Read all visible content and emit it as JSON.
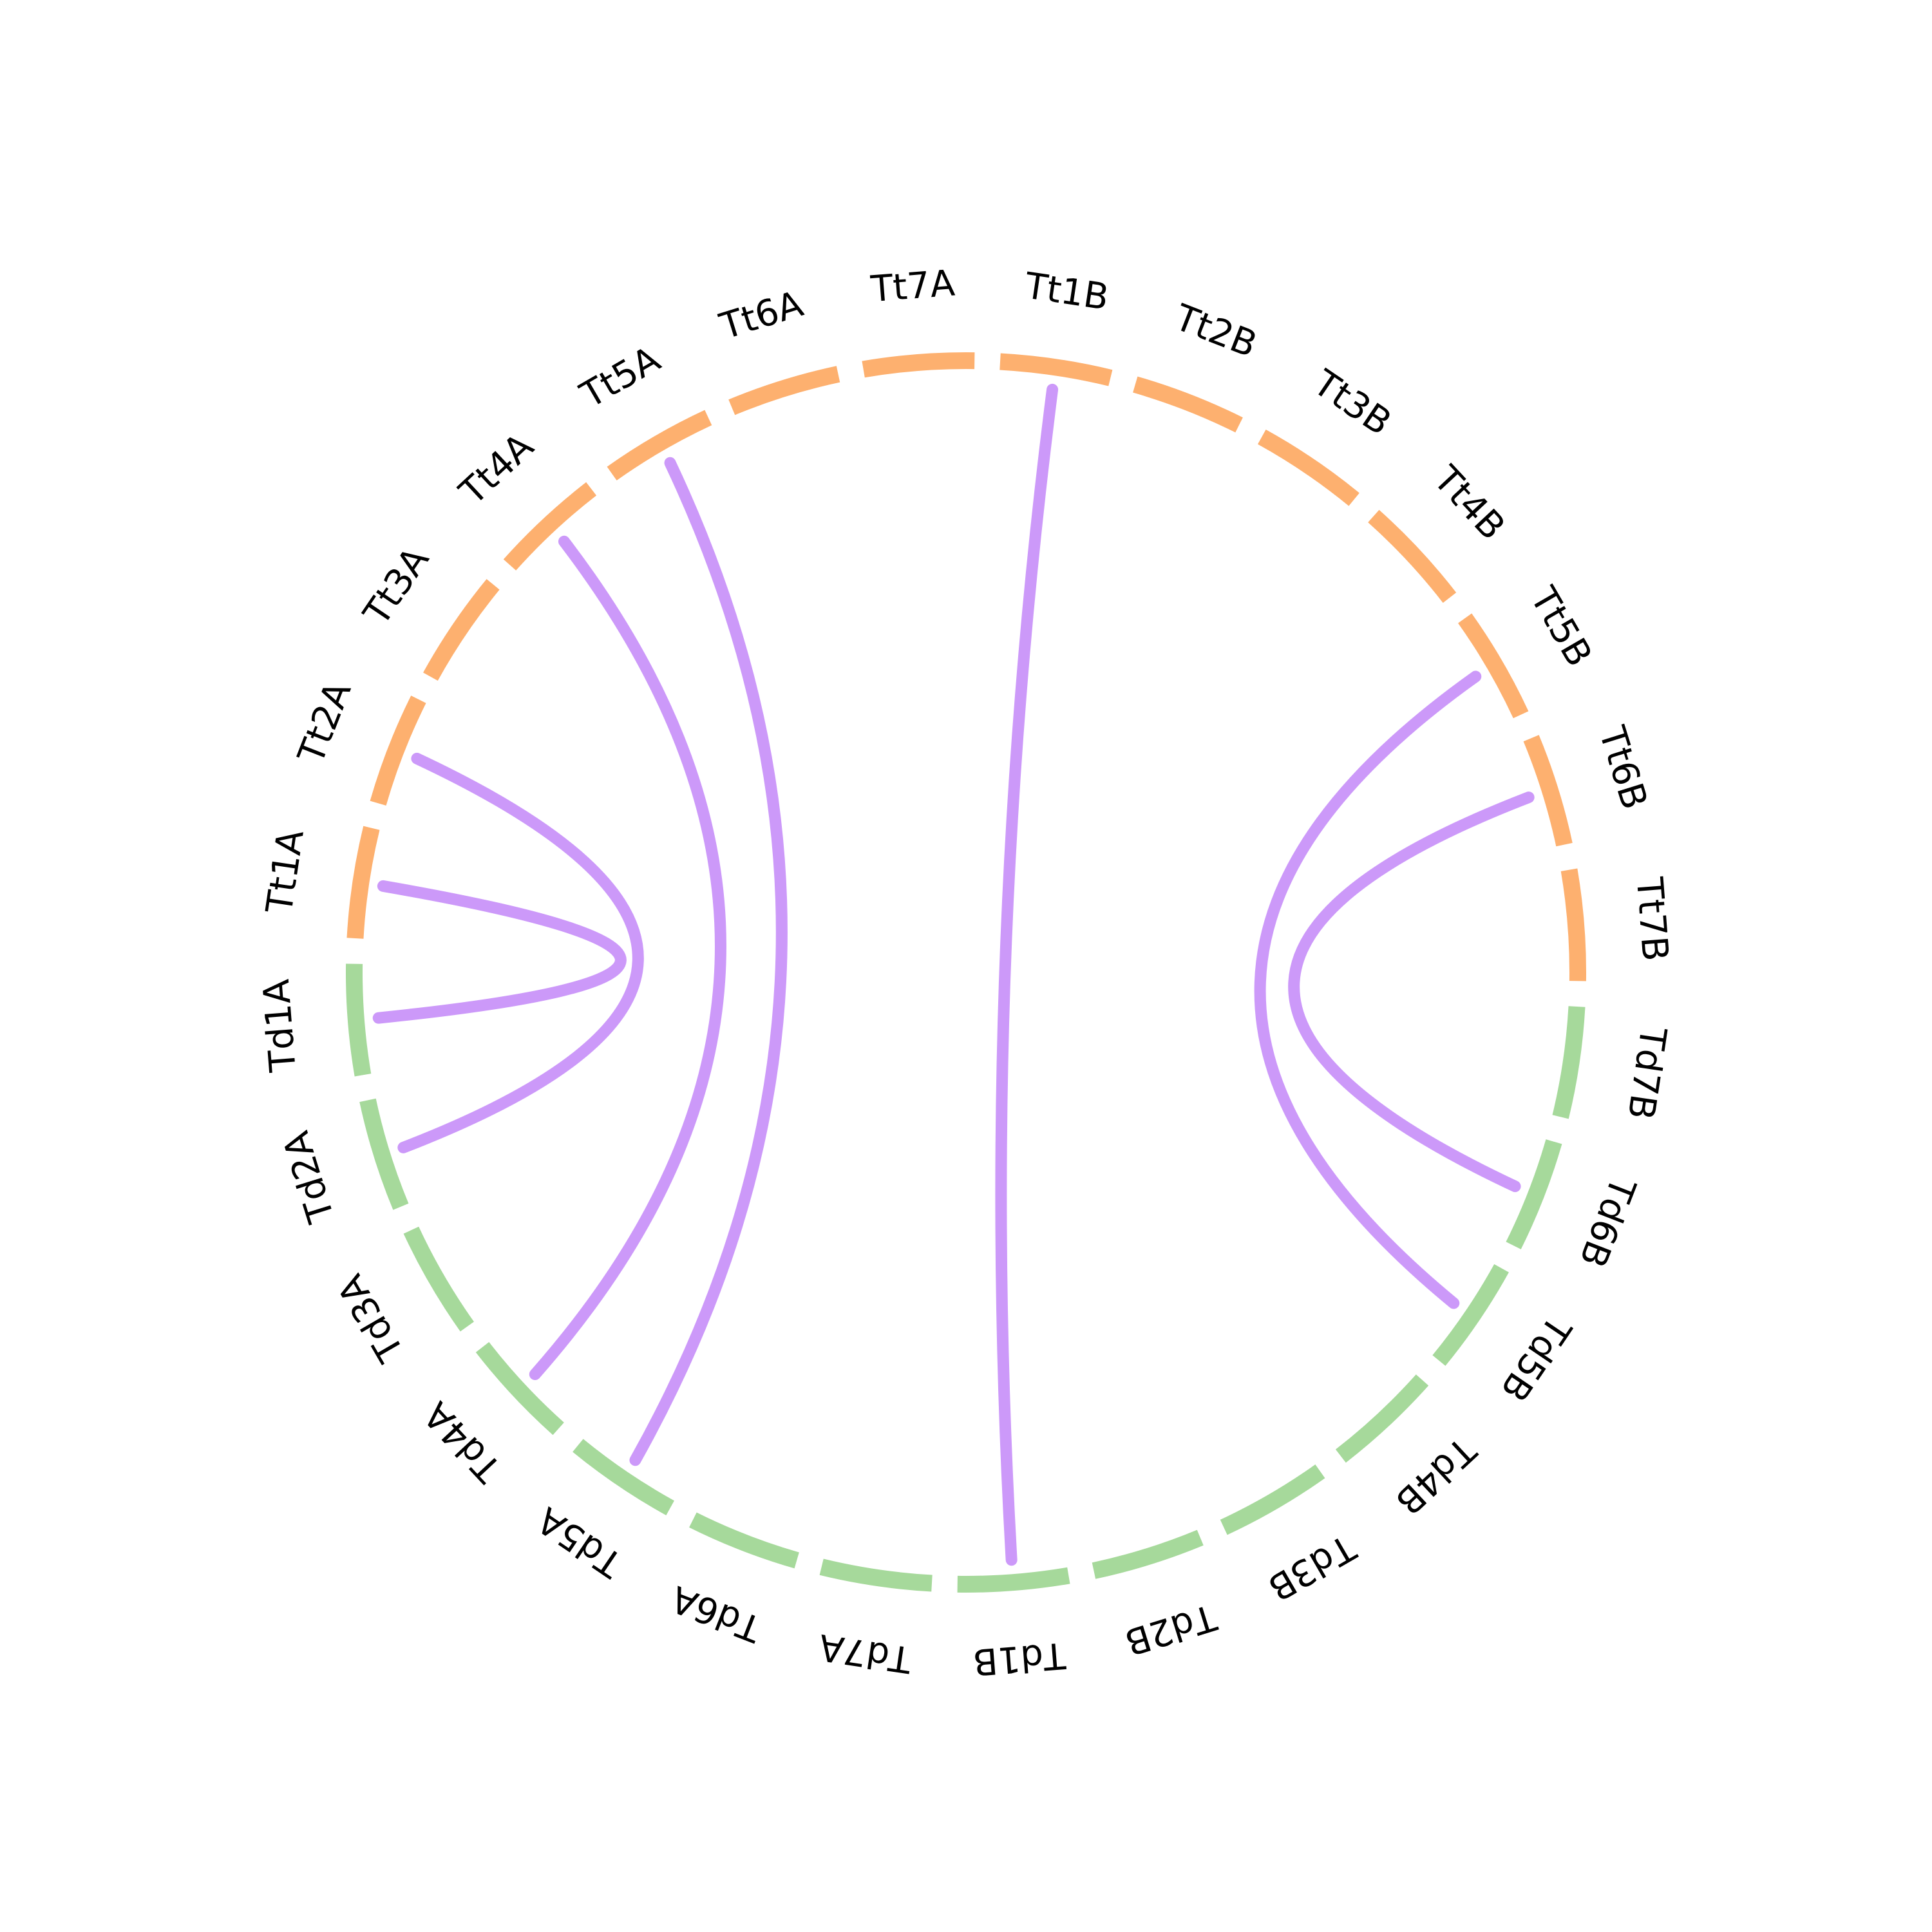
{
  "colors": {
    "td_segments": "#a6d99b",
    "tt_segments": "#fdb06f",
    "links": "#cc99f9",
    "labels": "#000000",
    "background": "#ffffff"
  },
  "segments": [
    {
      "id": "Tt1A",
      "group": "Tt"
    },
    {
      "id": "Tt2A",
      "group": "Tt"
    },
    {
      "id": "Tt3A",
      "group": "Tt"
    },
    {
      "id": "Tt4A",
      "group": "Tt"
    },
    {
      "id": "Tt5A",
      "group": "Tt"
    },
    {
      "id": "Tt6A",
      "group": "Tt"
    },
    {
      "id": "Tt7A",
      "group": "Tt"
    },
    {
      "id": "Tt1B",
      "group": "Tt"
    },
    {
      "id": "Tt2B",
      "group": "Tt"
    },
    {
      "id": "Tt3B",
      "group": "Tt"
    },
    {
      "id": "Tt4B",
      "group": "Tt"
    },
    {
      "id": "Tt5B",
      "group": "Tt"
    },
    {
      "id": "Tt6B",
      "group": "Tt"
    },
    {
      "id": "Tt7B",
      "group": "Tt"
    },
    {
      "id": "Td7B",
      "group": "Td"
    },
    {
      "id": "Td6B",
      "group": "Td"
    },
    {
      "id": "Td5B",
      "group": "Td"
    },
    {
      "id": "Td4B",
      "group": "Td"
    },
    {
      "id": "Td3B",
      "group": "Td"
    },
    {
      "id": "Td2B",
      "group": "Td"
    },
    {
      "id": "Td1B",
      "group": "Td"
    },
    {
      "id": "Td7A",
      "group": "Td"
    },
    {
      "id": "Td6A",
      "group": "Td"
    },
    {
      "id": "Td5A",
      "group": "Td"
    },
    {
      "id": "Td4A",
      "group": "Td"
    },
    {
      "id": "Td3A",
      "group": "Td"
    },
    {
      "id": "Td2A",
      "group": "Td"
    },
    {
      "id": "Td1A",
      "group": "Td"
    }
  ],
  "links": [
    {
      "source": "Td1A",
      "target": "Tt1A"
    },
    {
      "source": "Td2A",
      "target": "Tt2A"
    },
    {
      "source": "Td4A",
      "target": "Tt4A"
    },
    {
      "source": "Td5A",
      "target": "Tt5A"
    },
    {
      "source": "Td1B",
      "target": "Tt1B"
    },
    {
      "source": "Td5B",
      "target": "Tt5B"
    },
    {
      "source": "Td6B",
      "target": "Tt6B"
    }
  ]
}
